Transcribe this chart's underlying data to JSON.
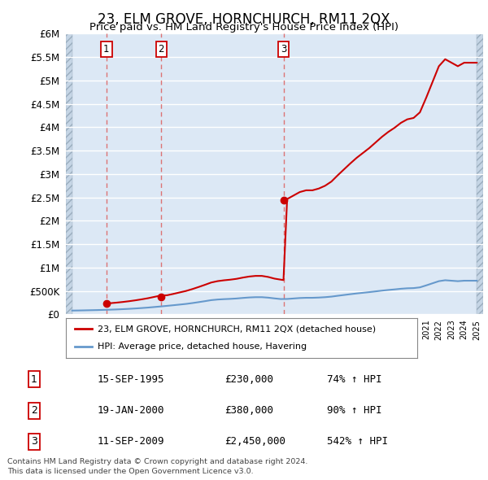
{
  "title": "23, ELM GROVE, HORNCHURCH, RM11 2QX",
  "subtitle": "Price paid vs. HM Land Registry's House Price Index (HPI)",
  "legend_line1": "23, ELM GROVE, HORNCHURCH, RM11 2QX (detached house)",
  "legend_line2": "HPI: Average price, detached house, Havering",
  "footer1": "Contains HM Land Registry data © Crown copyright and database right 2024.",
  "footer2": "This data is licensed under the Open Government Licence v3.0.",
  "transactions": [
    {
      "num": 1,
      "date": "15-SEP-1995",
      "price": 230000,
      "year": 1995.71,
      "pct": "74%",
      "dir": "↑"
    },
    {
      "num": 2,
      "date": "19-JAN-2000",
      "price": 380000,
      "year": 2000.05,
      "pct": "90%",
      "dir": "↑"
    },
    {
      "num": 3,
      "date": "11-SEP-2009",
      "price": 2450000,
      "year": 2009.71,
      "pct": "542%",
      "dir": "↑"
    }
  ],
  "hpi_years": [
    1993,
    1993.5,
    1994,
    1994.5,
    1995,
    1995.5,
    1996,
    1996.5,
    1997,
    1997.5,
    1998,
    1998.5,
    1999,
    1999.5,
    2000,
    2000.5,
    2001,
    2001.5,
    2002,
    2002.5,
    2003,
    2003.5,
    2004,
    2004.5,
    2005,
    2005.5,
    2006,
    2006.5,
    2007,
    2007.5,
    2008,
    2008.5,
    2009,
    2009.5,
    2010,
    2010.5,
    2011,
    2011.5,
    2012,
    2012.5,
    2013,
    2013.5,
    2014,
    2014.5,
    2015,
    2015.5,
    2016,
    2016.5,
    2017,
    2017.5,
    2018,
    2018.5,
    2019,
    2019.5,
    2020,
    2020.5,
    2021,
    2021.5,
    2022,
    2022.5,
    2023,
    2023.5,
    2024,
    2024.5,
    2025
  ],
  "hpi_values": [
    82000,
    84000,
    87000,
    90000,
    93000,
    97000,
    101000,
    106000,
    112000,
    119000,
    127000,
    136000,
    146000,
    158000,
    170000,
    183000,
    196000,
    210000,
    224000,
    242000,
    262000,
    283000,
    305000,
    318000,
    326000,
    332000,
    340000,
    352000,
    362000,
    368000,
    368000,
    358000,
    342000,
    328000,
    330000,
    340000,
    350000,
    355000,
    355000,
    360000,
    368000,
    380000,
    398000,
    415000,
    432000,
    448000,
    462000,
    476000,
    492000,
    508000,
    522000,
    534000,
    548000,
    558000,
    562000,
    578000,
    620000,
    665000,
    710000,
    730000,
    720000,
    710000,
    720000,
    720000,
    720000
  ],
  "price_paid_years": [
    1995.71,
    2000.05,
    2009.71
  ],
  "price_paid_values": [
    230000,
    380000,
    2450000
  ],
  "hpi_indexed_segments": [
    {
      "base_year": 1995.71,
      "base_price": 230000,
      "base_hpi": 97000,
      "start_year": 1995.71,
      "end_year": 2000.05,
      "years": [
        1995.71,
        1996,
        1996.5,
        1997,
        1997.5,
        1998,
        1998.5,
        1999,
        1999.5,
        2000,
        2000.05
      ],
      "hpi_at_years": [
        97000,
        101000,
        106000,
        112000,
        119000,
        127000,
        136000,
        146000,
        158000,
        170000,
        170000
      ]
    },
    {
      "base_year": 2000.05,
      "base_price": 380000,
      "base_hpi": 170000,
      "start_year": 2000.05,
      "end_year": 2009.71,
      "years": [
        2000.05,
        2000.5,
        2001,
        2001.5,
        2002,
        2002.5,
        2003,
        2003.5,
        2004,
        2004.5,
        2005,
        2005.5,
        2006,
        2006.5,
        2007,
        2007.5,
        2008,
        2008.5,
        2009,
        2009.71
      ],
      "hpi_at_years": [
        170000,
        183000,
        196000,
        210000,
        224000,
        242000,
        262000,
        283000,
        305000,
        318000,
        326000,
        332000,
        340000,
        352000,
        362000,
        368000,
        368000,
        358000,
        342000,
        328000
      ]
    },
    {
      "base_year": 2009.71,
      "base_price": 2450000,
      "base_hpi": 328000,
      "start_year": 2009.71,
      "end_year": 2025,
      "years": [
        2009.71,
        2010,
        2010.5,
        2011,
        2011.5,
        2012,
        2012.5,
        2013,
        2013.5,
        2014,
        2014.5,
        2015,
        2015.5,
        2016,
        2016.5,
        2017,
        2017.5,
        2018,
        2018.5,
        2019,
        2019.5,
        2020,
        2020.5,
        2021,
        2021.5,
        2022,
        2022.5,
        2023,
        2023.5,
        2024,
        2024.5,
        2025
      ],
      "hpi_at_years": [
        328000,
        330000,
        340000,
        350000,
        355000,
        355000,
        360000,
        368000,
        380000,
        398000,
        415000,
        432000,
        448000,
        462000,
        476000,
        492000,
        508000,
        522000,
        534000,
        548000,
        558000,
        562000,
        578000,
        620000,
        665000,
        710000,
        730000,
        720000,
        710000,
        720000,
        720000,
        720000
      ]
    }
  ],
  "ylim": [
    0,
    6000000
  ],
  "xlim_start": 1992.5,
  "xlim_end": 2025.5,
  "red_color": "#cc0000",
  "blue_color": "#6699cc",
  "background_color": "#dce8f5",
  "hatch_color": "#c5d5e5",
  "grid_color": "#ffffff",
  "dashed_color": "#dd6666"
}
